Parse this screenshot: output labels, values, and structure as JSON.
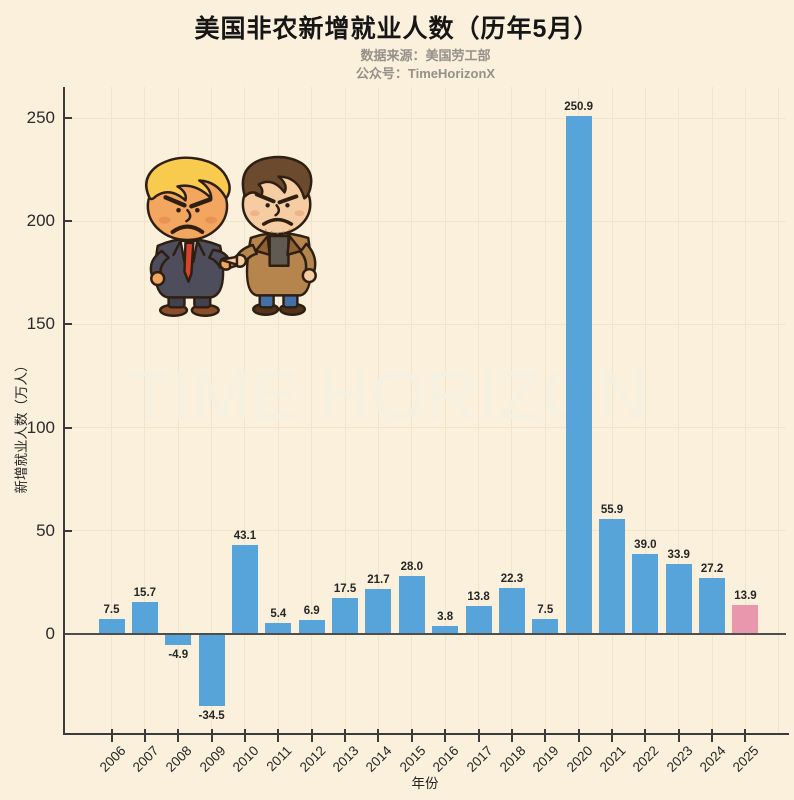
{
  "title": "美国非农新增就业人数（历年5月）",
  "subtitle": {
    "source": "数据来源：美国劳工部",
    "account": "公众号：TimeHorizonX"
  },
  "watermark": "TIME HORIZON",
  "illustration": {
    "description": "卡通插画：特朗普与马斯克怒目相对互相指责"
  },
  "chart_data": {
    "type": "bar",
    "title": "美国非农新增就业人数（历年5月）",
    "xlabel": "年份",
    "ylabel": "新增就业人数（万人）",
    "categories": [
      "2006",
      "2007",
      "2008",
      "2009",
      "2010",
      "2011",
      "2012",
      "2013",
      "2014",
      "2015",
      "2016",
      "2017",
      "2018",
      "2019",
      "2020",
      "2021",
      "2022",
      "2023",
      "2024",
      "2025"
    ],
    "values": [
      7.5,
      15.7,
      -4.9,
      -34.5,
      43.1,
      5.4,
      6.9,
      17.5,
      21.7,
      28.0,
      3.8,
      13.8,
      22.3,
      7.5,
      250.9,
      55.9,
      39.0,
      33.9,
      27.2,
      13.9
    ],
    "highlight_index": 19,
    "yticks": [
      0,
      50,
      100,
      150,
      200,
      250
    ],
    "ylim": [
      -48,
      265
    ],
    "grid": true,
    "legend": false,
    "value_labels": true,
    "colors": {
      "bar": "#57a4db",
      "bar_highlight": "#e897ad",
      "background": "#faf0dc",
      "grid": "#f0e5ca",
      "axis": "#3b3b3b",
      "zero_line": "#4e4e4e",
      "text": "#262626",
      "subtitle": "#96908a",
      "title": "#161616",
      "watermark": "rgba(246,239,224,0.95)"
    }
  }
}
